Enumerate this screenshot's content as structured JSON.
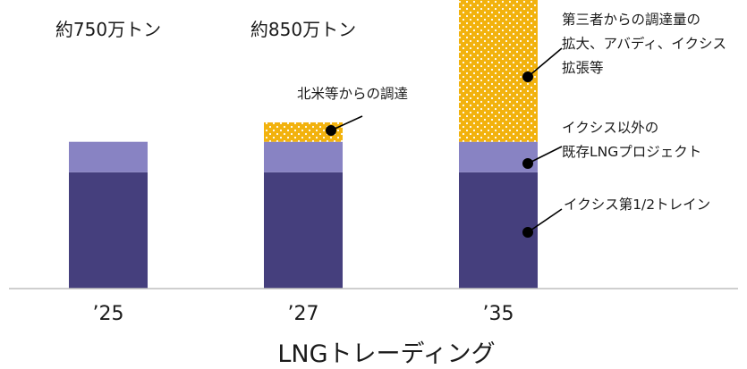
{
  "chart_data": {
    "type": "bar",
    "stacked": true,
    "categories": [
      "’25",
      "’27",
      "’35"
    ],
    "xlabel": "LNGトレーディング",
    "totals": [
      "約750万トン",
      "約850万トン",
      ""
    ],
    "series": [
      {
        "values": [
          4.2,
          4.2,
          4.2
        ],
        "color": "#453F7D"
      },
      {
        "values": [
          1.1,
          1.1,
          1.1
        ],
        "color": "#8883C3"
      },
      {
        "values": [
          0,
          0.7,
          5.4
        ],
        "color": "#F2B20D",
        "pattern": "white-dots"
      }
    ],
    "annotations": [
      {
        "target_category": 1,
        "target_series": 2,
        "lines": [
          "北米等からの調達"
        ]
      },
      {
        "target_category": 2,
        "target_series": 2,
        "lines": [
          "第三者からの調達量の",
          "拡大、アバディ、イクシス",
          "拡張等"
        ]
      },
      {
        "target_category": 2,
        "target_series": 1,
        "lines": [
          "イクシス以外の",
          "既存LNGプロジェクト"
        ]
      },
      {
        "target_category": 2,
        "target_series": 0,
        "lines": [
          "イクシス第1/2トレイン"
        ]
      }
    ],
    "baseline_color": "#bfbfbf"
  }
}
